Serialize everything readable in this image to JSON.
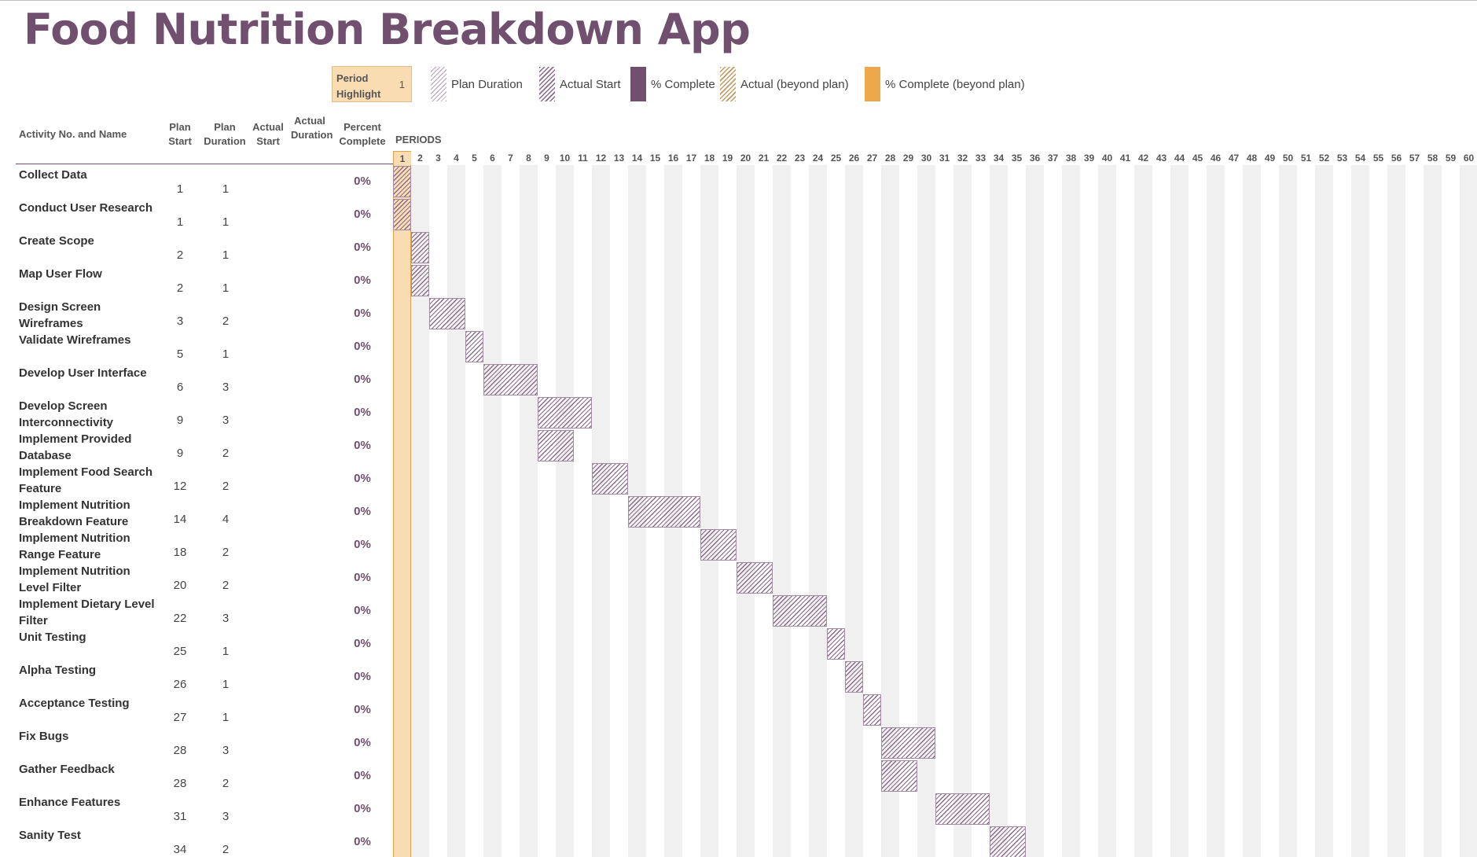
{
  "app": {
    "title": "Food Nutrition Breakdown App"
  },
  "period_highlight": {
    "label": "Period Highlight",
    "value": "1"
  },
  "legend": {
    "plan_duration": "Plan Duration",
    "actual_start": "Actual Start",
    "percent_complete": "% Complete",
    "actual_beyond_plan": "Actual (beyond plan)",
    "percent_complete_beyond_plan": "% Complete (beyond plan)"
  },
  "columns": {
    "activity": "Activity No. and Name",
    "plan_start": "Plan Start",
    "plan_duration": "Plan Duration",
    "actual_start": "Actual Start",
    "actual_duration": "Actual Duration",
    "percent_complete": "Percent Complete",
    "periods": "PERIODS"
  },
  "periods": [
    "1",
    "2",
    "3",
    "4",
    "5",
    "6",
    "7",
    "8",
    "9",
    "10",
    "11",
    "12",
    "13",
    "14",
    "15",
    "16",
    "17",
    "18",
    "19",
    "20",
    "21",
    "22",
    "23",
    "24",
    "25",
    "26",
    "27",
    "28",
    "29",
    "30",
    "31",
    "32",
    "33",
    "34",
    "35",
    "36",
    "37",
    "38",
    "39",
    "40",
    "41",
    "42",
    "43",
    "44",
    "45",
    "46",
    "47",
    "48",
    "49",
    "50",
    "51",
    "52",
    "53",
    "54",
    "55",
    "56",
    "57",
    "58",
    "59",
    "60"
  ],
  "colors": {
    "accent": "#70506e",
    "highlight": "#f9dcb2",
    "highlight_border": "#e0a050",
    "stripe": "#f0f0f0"
  },
  "tasks": [
    {
      "name": "Collect Data",
      "plan_start": "1",
      "plan_duration": "1",
      "percent": "0%"
    },
    {
      "name": "Conduct User Research",
      "plan_start": "1",
      "plan_duration": "1",
      "percent": "0%"
    },
    {
      "name": "Create Scope",
      "plan_start": "2",
      "plan_duration": "1",
      "percent": "0%"
    },
    {
      "name": "Map User Flow",
      "plan_start": "2",
      "plan_duration": "1",
      "percent": "0%"
    },
    {
      "name": "Design Screen Wireframes",
      "plan_start": "3",
      "plan_duration": "2",
      "percent": "0%"
    },
    {
      "name": "Validate Wireframes",
      "plan_start": "5",
      "plan_duration": "1",
      "percent": "0%"
    },
    {
      "name": "Develop User Interface",
      "plan_start": "6",
      "plan_duration": "3",
      "percent": "0%"
    },
    {
      "name": "Develop Screen Interconnectivity",
      "plan_start": "9",
      "plan_duration": "3",
      "percent": "0%"
    },
    {
      "name": "Implement Provided Database",
      "plan_start": "9",
      "plan_duration": "2",
      "percent": "0%"
    },
    {
      "name": "Implement Food Search Feature",
      "plan_start": "12",
      "plan_duration": "2",
      "percent": "0%"
    },
    {
      "name": "Implement Nutrition Breakdown Feature",
      "plan_start": "14",
      "plan_duration": "4",
      "percent": "0%"
    },
    {
      "name": "Implement Nutrition Range Feature",
      "plan_start": "18",
      "plan_duration": "2",
      "percent": "0%"
    },
    {
      "name": "Implement Nutrition Level Filter",
      "plan_start": "20",
      "plan_duration": "2",
      "percent": "0%"
    },
    {
      "name": "Implement Dietary Level Filter",
      "plan_start": "22",
      "plan_duration": "3",
      "percent": "0%"
    },
    {
      "name": "Unit Testing",
      "plan_start": "25",
      "plan_duration": "1",
      "percent": "0%"
    },
    {
      "name": "Alpha Testing",
      "plan_start": "26",
      "plan_duration": "1",
      "percent": "0%"
    },
    {
      "name": "Acceptance Testing",
      "plan_start": "27",
      "plan_duration": "1",
      "percent": "0%"
    },
    {
      "name": "Fix Bugs",
      "plan_start": "28",
      "plan_duration": "3",
      "percent": "0%"
    },
    {
      "name": "Gather Feedback",
      "plan_start": "28",
      "plan_duration": "2",
      "percent": "0%"
    },
    {
      "name": "Enhance Features",
      "plan_start": "31",
      "plan_duration": "3",
      "percent": "0%"
    },
    {
      "name": "Sanity Test",
      "plan_start": "34",
      "plan_duration": "2",
      "percent": "0%"
    }
  ]
}
